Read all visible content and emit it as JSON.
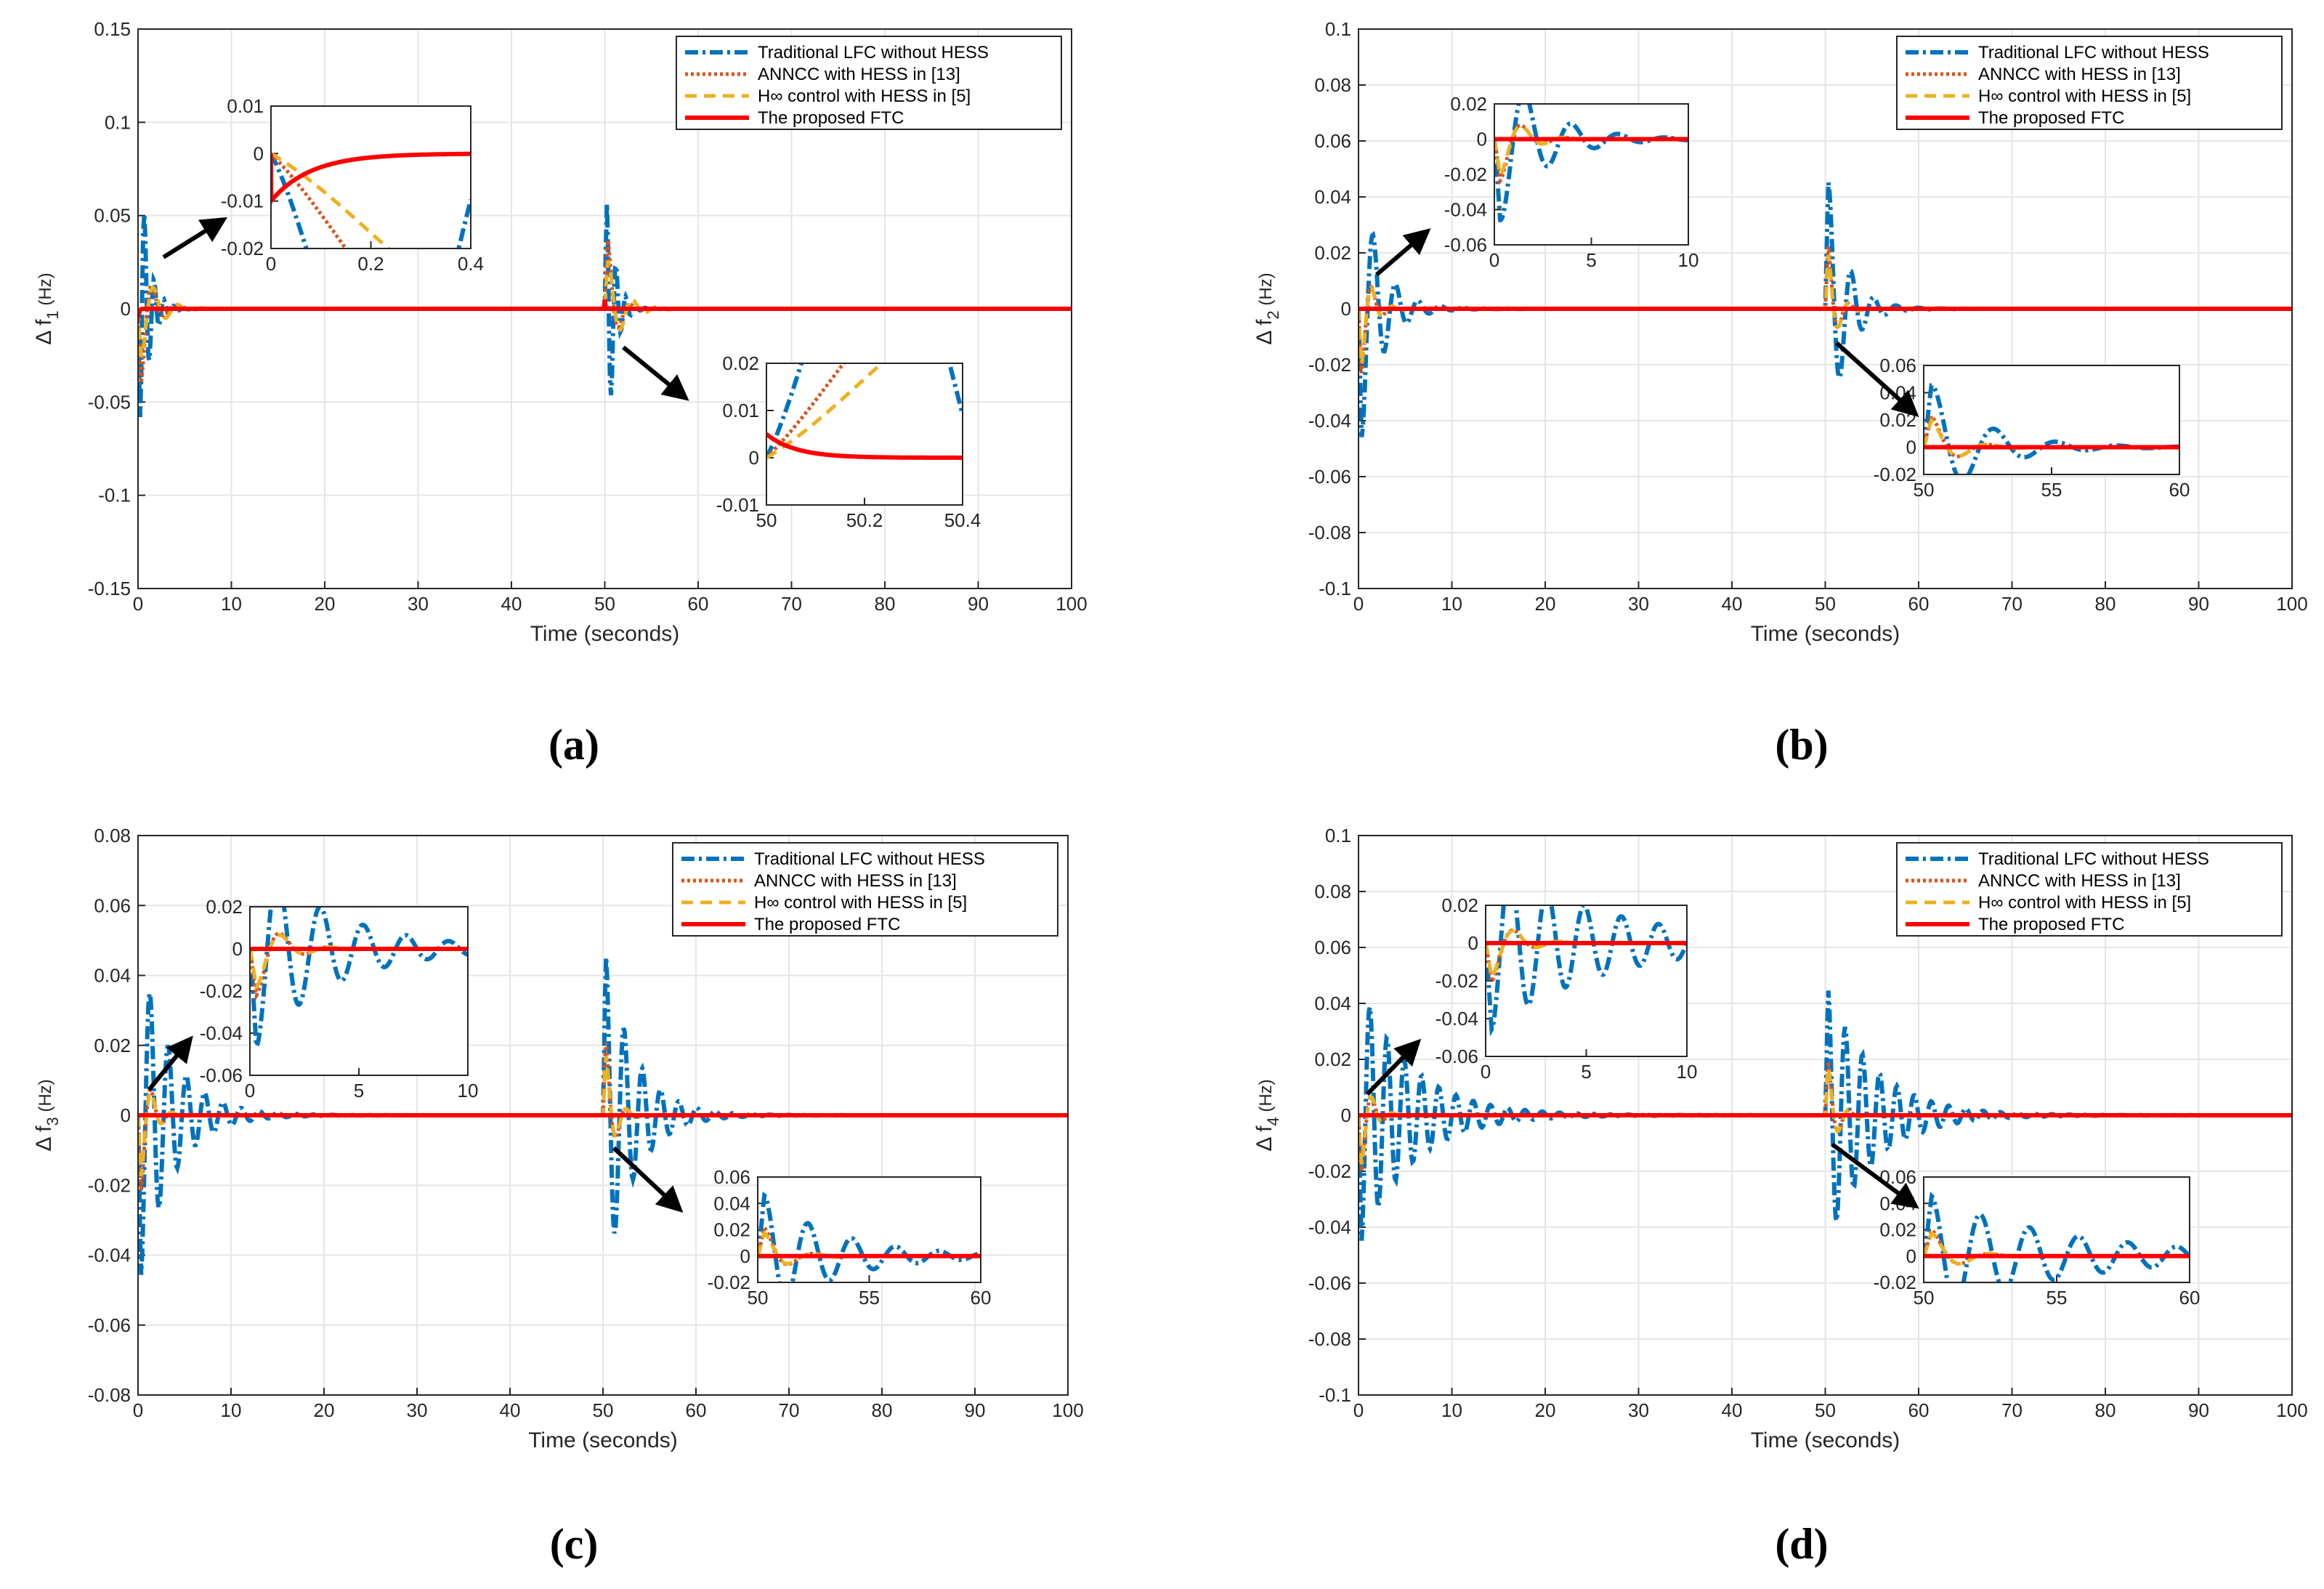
{
  "legend": [
    {
      "label": "Traditional LFC without HESS",
      "color": "#0072BD",
      "dash": "18,6,4,6",
      "width": 6
    },
    {
      "label": "ANNCC with HESS in [13]",
      "color": "#D95319",
      "dash": "4,4",
      "width": 5
    },
    {
      "label": "H∞ control with HESS in [5]",
      "color": "#EDB120",
      "dash": "16,10",
      "width": 5
    },
    {
      "label": "The proposed FTC",
      "color": "#FF0000",
      "dash": "",
      "width": 6
    }
  ],
  "xlabel": "Time (seconds)",
  "chart_data": [
    {
      "type": "line",
      "caption": "(a)",
      "ylabel_main": "Δ f",
      "ylabel_sub": "1",
      "ylabel_unit": " (Hz)",
      "xlim": [
        0,
        100
      ],
      "ylim": [
        -0.15,
        0.15
      ],
      "xticks": [
        0,
        10,
        20,
        30,
        40,
        50,
        60,
        70,
        80,
        90,
        100
      ],
      "yticks": [
        -0.15,
        -0.1,
        -0.05,
        0,
        0.05,
        0.1,
        0.15
      ],
      "ytick_labels": [
        "-0.15",
        "-0.1",
        "-0.05",
        "0",
        "0.05",
        "0.1",
        "0.15"
      ],
      "grid": true,
      "legend_position": "top-right",
      "series_params": {
        "blue": {
          "A1": -0.1,
          "tau1": 0.9,
          "om1": 6.0,
          "A2": 0.1,
          "tau2": 0.8,
          "om2": 6.0
        },
        "orange": {
          "A1": -0.052,
          "tau1": 1.0,
          "om1": 2.6,
          "A2": 0.05,
          "tau2": 0.9,
          "om2": 2.6
        },
        "yellow": {
          "A1": -0.03,
          "tau1": 1.6,
          "om1": 2.4,
          "A2": 0.03,
          "tau2": 1.6,
          "om2": 2.4
        },
        "red": {
          "A1": -0.01,
          "tau1": 0.08,
          "om1": 0,
          "A2": 0.005,
          "tau2": 0.06,
          "om2": 0
        }
      },
      "insets": [
        {
          "xlim": [
            0,
            0.4
          ],
          "ylim": [
            -0.02,
            0.01
          ],
          "xticks": [
            0,
            0.2,
            0.4
          ],
          "xtick_labels": [
            "0",
            "0.2",
            "0.4"
          ],
          "yticks": [
            -0.02,
            -0.01,
            0,
            0.01
          ],
          "ytick_labels": [
            "-0.02",
            "-0.01",
            "0",
            "0.01"
          ]
        },
        {
          "xlim": [
            50,
            50.4
          ],
          "ylim": [
            -0.01,
            0.02
          ],
          "xticks": [
            50,
            50.2,
            50.4
          ],
          "xtick_labels": [
            "50",
            "50.2",
            "50.4"
          ],
          "yticks": [
            -0.01,
            0,
            0.01,
            0.02
          ],
          "ytick_labels": [
            "-0.01",
            "0",
            "0.01",
            "0.02"
          ]
        }
      ]
    },
    {
      "type": "line",
      "caption": "(b)",
      "ylabel_main": "Δ f",
      "ylabel_sub": "2",
      "ylabel_unit": " (Hz)",
      "xlim": [
        0,
        100
      ],
      "ylim": [
        -0.1,
        0.1
      ],
      "xticks": [
        0,
        10,
        20,
        30,
        40,
        50,
        60,
        70,
        80,
        90,
        100
      ],
      "yticks": [
        -0.1,
        -0.08,
        -0.06,
        -0.04,
        -0.02,
        0,
        0.02,
        0.04,
        0.06,
        0.08,
        0.1
      ],
      "ytick_labels": [
        "-0.1",
        "-0.08",
        "-0.06",
        "-0.04",
        "-0.02",
        "0",
        "0.02",
        "0.04",
        "0.06",
        "0.08",
        "0.1"
      ],
      "grid": true,
      "legend_position": "top-right",
      "series_params": {
        "blue": {
          "A1": -0.05,
          "tau1": 2.2,
          "om1": 2.6,
          "A2": 0.05,
          "tau2": 2.0,
          "om2": 2.6
        },
        "orange": {
          "A1": -0.03,
          "tau1": 1.0,
          "om1": 2.8,
          "A2": 0.03,
          "tau2": 0.9,
          "om2": 2.8
        },
        "yellow": {
          "A1": -0.025,
          "tau1": 1.1,
          "om1": 2.8,
          "A2": 0.025,
          "tau2": 1.0,
          "om2": 2.8
        },
        "red": {
          "A1": 0,
          "tau1": 0.1,
          "om1": 0,
          "A2": 0,
          "tau2": 0.1,
          "om2": 0
        }
      },
      "insets": [
        {
          "xlim": [
            0,
            10
          ],
          "ylim": [
            -0.06,
            0.02
          ],
          "xticks": [
            0,
            5,
            10
          ],
          "xtick_labels": [
            "0",
            "5",
            "10"
          ],
          "yticks": [
            -0.06,
            -0.04,
            -0.02,
            0,
            0.02
          ],
          "ytick_labels": [
            "-0.06",
            "-0.04",
            "-0.02",
            "0",
            "0.02"
          ]
        },
        {
          "xlim": [
            50,
            60
          ],
          "ylim": [
            -0.02,
            0.06
          ],
          "xticks": [
            50,
            55,
            60
          ],
          "xtick_labels": [
            "50",
            "55",
            "60"
          ],
          "yticks": [
            -0.02,
            0,
            0.02,
            0.04,
            0.06
          ],
          "ytick_labels": [
            "-0.02",
            "0",
            "0.02",
            "0.04",
            "0.06"
          ]
        }
      ]
    },
    {
      "type": "line",
      "caption": "(c)",
      "ylabel_main": "Δ f",
      "ylabel_sub": "3",
      "ylabel_unit": " (Hz)",
      "xlim": [
        0,
        100
      ],
      "ylim": [
        -0.08,
        0.08
      ],
      "xticks": [
        0,
        10,
        20,
        30,
        40,
        50,
        60,
        70,
        80,
        90,
        100
      ],
      "yticks": [
        -0.08,
        -0.06,
        -0.04,
        -0.02,
        0,
        0.02,
        0.04,
        0.06,
        0.08
      ],
      "ytick_labels": [
        "-0.08",
        "-0.06",
        "-0.04",
        "-0.02",
        "0",
        "0.02",
        "0.04",
        "0.06",
        "0.08"
      ],
      "grid": true,
      "legend_position": "top-right",
      "series_params": {
        "blue": {
          "A1": -0.047,
          "tau1": 3.5,
          "om1": 3.2,
          "A2": 0.047,
          "tau2": 3.2,
          "om2": 3.2
        },
        "orange": {
          "A1": -0.028,
          "tau1": 1.0,
          "om1": 2.8,
          "A2": 0.028,
          "tau2": 0.9,
          "om2": 2.8
        },
        "yellow": {
          "A1": -0.022,
          "tau1": 1.1,
          "om1": 2.8,
          "A2": 0.022,
          "tau2": 1.0,
          "om2": 2.8
        },
        "red": {
          "A1": 0,
          "tau1": 0.1,
          "om1": 0,
          "A2": 0,
          "tau2": 0.1,
          "om2": 0
        }
      },
      "insets": [
        {
          "xlim": [
            0,
            10
          ],
          "ylim": [
            -0.06,
            0.02
          ],
          "xticks": [
            0,
            5,
            10
          ],
          "xtick_labels": [
            "0",
            "5",
            "10"
          ],
          "yticks": [
            -0.06,
            -0.04,
            -0.02,
            0,
            0.02
          ],
          "ytick_labels": [
            "-0.06",
            "-0.04",
            "-0.02",
            "0",
            "0.02"
          ]
        },
        {
          "xlim": [
            50,
            60
          ],
          "ylim": [
            -0.02,
            0.06
          ],
          "xticks": [
            50,
            55,
            60
          ],
          "xtick_labels": [
            "50",
            "55",
            "60"
          ],
          "yticks": [
            -0.02,
            0,
            0.02,
            0.04,
            0.06
          ],
          "ytick_labels": [
            "-0.02",
            "0",
            "0.02",
            "0.04",
            "0.06"
          ]
        }
      ]
    },
    {
      "type": "line",
      "caption": "(d)",
      "ylabel_main": "Δ f",
      "ylabel_sub": "4",
      "ylabel_unit": " (Hz)",
      "xlim": [
        0,
        100
      ],
      "ylim": [
        -0.1,
        0.1
      ],
      "xticks": [
        0,
        10,
        20,
        30,
        40,
        50,
        60,
        70,
        80,
        90,
        100
      ],
      "yticks": [
        -0.1,
        -0.08,
        -0.06,
        -0.04,
        -0.02,
        0,
        0.02,
        0.04,
        0.06,
        0.08,
        0.1
      ],
      "ytick_labels": [
        "-0.1",
        "-0.08",
        "-0.06",
        "-0.04",
        "-0.02",
        "0",
        "0.02",
        "0.04",
        "0.06",
        "0.08",
        "0.1"
      ],
      "grid": true,
      "legend_position": "top-right",
      "series_params": {
        "blue": {
          "A1": -0.045,
          "tau1": 5.5,
          "om1": 3.4,
          "A2": 0.045,
          "tau2": 5.0,
          "om2": 3.4
        },
        "orange": {
          "A1": -0.026,
          "tau1": 1.0,
          "om1": 2.8,
          "A2": 0.026,
          "tau2": 0.9,
          "om2": 2.8
        },
        "yellow": {
          "A1": -0.022,
          "tau1": 1.1,
          "om1": 2.8,
          "A2": 0.022,
          "tau2": 1.0,
          "om2": 2.8
        },
        "red": {
          "A1": 0,
          "tau1": 0.1,
          "om1": 0,
          "A2": 0,
          "tau2": 0.1,
          "om2": 0
        }
      },
      "insets": [
        {
          "xlim": [
            0,
            10
          ],
          "ylim": [
            -0.06,
            0.02
          ],
          "xticks": [
            0,
            5,
            10
          ],
          "xtick_labels": [
            "0",
            "5",
            "10"
          ],
          "yticks": [
            -0.06,
            -0.04,
            -0.02,
            0,
            0.02
          ],
          "ytick_labels": [
            "-0.06",
            "-0.04",
            "-0.02",
            "0",
            "0.02"
          ]
        },
        {
          "xlim": [
            50,
            60
          ],
          "ylim": [
            -0.02,
            0.06
          ],
          "xticks": [
            50,
            55,
            60
          ],
          "xtick_labels": [
            "50",
            "55",
            "60"
          ],
          "yticks": [
            -0.02,
            0,
            0.02,
            0.04,
            0.06
          ],
          "ytick_labels": [
            "-0.02",
            "0",
            "0.02",
            "0.04",
            "0.06"
          ]
        }
      ]
    }
  ]
}
